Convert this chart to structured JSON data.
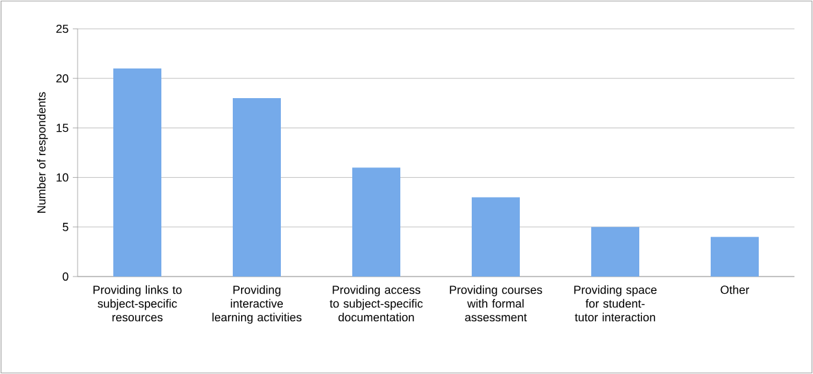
{
  "chart_data": {
    "type": "bar",
    "ylabel": "Number of respondents",
    "categories": [
      "Providing links to subject-specific resources",
      "Providing interactive learning activities",
      "Providing access to subject-specific documentation",
      "Providing courses with formal assessment",
      "Providing space for student-tutor interaction",
      "Other"
    ],
    "values": [
      21,
      18,
      11,
      8,
      5,
      4
    ],
    "color": "#75aaea",
    "ylim": [
      0,
      25
    ],
    "yticks": [
      0,
      5,
      10,
      15,
      20,
      25
    ],
    "grid": "y"
  }
}
